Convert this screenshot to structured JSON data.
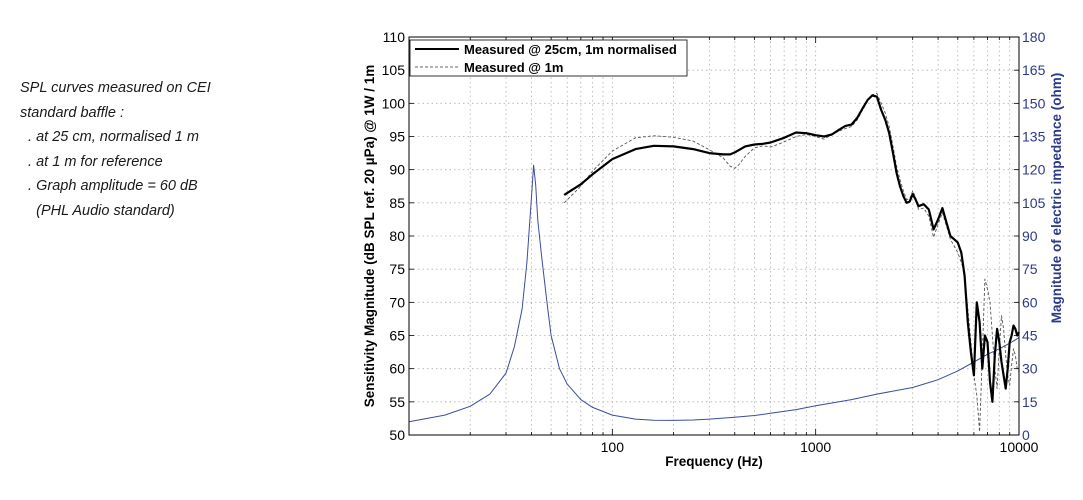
{
  "notes": [
    "SPL curves measured on CEI",
    "standard baffle :",
    "  . at 25 cm, normalised 1 m",
    "  . at 1 m for reference",
    "  . Graph amplitude = 60 dB",
    "    (PHL Audio standard)"
  ],
  "colors": {
    "spl": "#000000",
    "impedance": "#3c4c9c",
    "right_axis": "#2b3a8a",
    "grid": "#b0b0b0"
  },
  "chart_data": {
    "type": "line",
    "xlabel": "Frequency (Hz)",
    "ylabel": "Sensitivity Magnitude (dB SPL ref. 20 µPa) @ 1W / 1m",
    "y2label": "Magnitude of electric impedance (ohm)",
    "xscale": "log",
    "xlim": [
      10,
      10000
    ],
    "ylim": [
      50,
      110
    ],
    "y2lim": [
      0,
      180
    ],
    "xticks": [
      100,
      1000,
      10000
    ],
    "xtick_labels": [
      "100",
      "1000",
      "10000"
    ],
    "yticks": [
      50,
      55,
      60,
      65,
      70,
      75,
      80,
      85,
      90,
      95,
      100,
      105,
      110
    ],
    "y2ticks": [
      0,
      15,
      30,
      45,
      60,
      75,
      90,
      105,
      120,
      135,
      150,
      165,
      180
    ],
    "grid": true,
    "legend_position": "top-left",
    "series": [
      {
        "name": "Measured @ 25cm, 1m normalised",
        "axis": "left",
        "style": "solid",
        "x": [
          58,
          70,
          80,
          100,
          130,
          160,
          200,
          250,
          300,
          350,
          380,
          400,
          450,
          500,
          550,
          600,
          700,
          800,
          900,
          1000,
          1100,
          1200,
          1300,
          1400,
          1500,
          1600,
          1700,
          1800,
          1900,
          2000,
          2100,
          2200,
          2300,
          2400,
          2500,
          2600,
          2700,
          2800,
          2900,
          3000,
          3100,
          3200,
          3400,
          3600,
          3800,
          4000,
          4200,
          4400,
          4600,
          4800,
          5000,
          5200,
          5400,
          5600,
          5800,
          6000,
          6200,
          6400,
          6600,
          6800,
          7000,
          7200,
          7400,
          7600,
          7800,
          8000,
          8200,
          8400,
          8600,
          8800,
          9000,
          9200,
          9400,
          9600,
          9800,
          10000
        ],
        "y": [
          86.2,
          87.8,
          89.3,
          91.6,
          93.1,
          93.6,
          93.5,
          93.1,
          92.5,
          92.3,
          92.3,
          92.6,
          93.5,
          93.8,
          93.9,
          94.1,
          94.8,
          95.6,
          95.5,
          95.2,
          95.0,
          95.3,
          96.0,
          96.6,
          96.8,
          97.8,
          99.2,
          100.5,
          101.2,
          101.0,
          99.0,
          97.5,
          95.5,
          92.5,
          89.5,
          87.5,
          86.0,
          85.0,
          85.2,
          86.3,
          85.5,
          84.5,
          84.8,
          84.0,
          81.0,
          82.5,
          84.2,
          82.0,
          80.0,
          79.5,
          79.0,
          77.5,
          74.0,
          67.0,
          62.5,
          59.0,
          70.0,
          67.0,
          60.0,
          65.0,
          64.0,
          58.0,
          55.0,
          62.0,
          66.0,
          64.0,
          61.0,
          59.0,
          57.0,
          60.0,
          64.0,
          65.0,
          66.5,
          66.0,
          65.0,
          65.5
        ]
      },
      {
        "name": "Measured @ 1m",
        "axis": "left",
        "style": "dashed",
        "x": [
          58,
          70,
          80,
          100,
          130,
          160,
          200,
          250,
          300,
          350,
          380,
          400,
          420,
          450,
          500,
          550,
          600,
          650,
          700,
          800,
          900,
          1000,
          1100,
          1200,
          1300,
          1400,
          1500,
          1600,
          1700,
          1800,
          1900,
          2000,
          2100,
          2200,
          2300,
          2400,
          2500,
          2600,
          2700,
          2800,
          2900,
          3000,
          3100,
          3200,
          3400,
          3600,
          3800,
          4000,
          4200,
          4400,
          4600,
          4800,
          5000,
          5200,
          5400,
          5600,
          5800,
          6000,
          6200,
          6400,
          6600,
          6800,
          7000,
          7200,
          7400,
          7600,
          7800,
          8000,
          8200,
          8400,
          8600,
          8800,
          9000,
          9200,
          9400,
          9600,
          9800,
          10000
        ],
        "y": [
          85.0,
          87.5,
          89.8,
          92.8,
          94.8,
          95.1,
          94.9,
          94.3,
          93.0,
          91.8,
          90.5,
          90.2,
          90.8,
          92.0,
          93.3,
          93.6,
          93.4,
          93.8,
          94.2,
          95.0,
          95.3,
          95.0,
          94.6,
          95.3,
          95.8,
          96.2,
          96.5,
          97.5,
          99.0,
          100.3,
          101.3,
          101.5,
          100.0,
          98.5,
          96.5,
          93.5,
          90.5,
          88.5,
          86.8,
          85.5,
          85.6,
          86.8,
          85.8,
          84.0,
          84.2,
          83.0,
          79.8,
          81.8,
          83.5,
          81.5,
          79.5,
          78.5,
          77.5,
          76.0,
          74.5,
          69.0,
          64.0,
          59.0,
          56.0,
          50.5,
          62.0,
          73.5,
          72.0,
          70.0,
          65.0,
          60.0,
          57.0,
          63.0,
          68.0,
          66.0,
          62.0,
          59.0,
          57.5,
          60.5,
          63.0,
          62.0,
          60.0,
          59.5
        ]
      },
      {
        "axis": "right",
        "style": "solid",
        "x": [
          10,
          15,
          20,
          25,
          30,
          33,
          36,
          38,
          40,
          41,
          42,
          43,
          45,
          48,
          50,
          55,
          60,
          70,
          80,
          100,
          130,
          160,
          200,
          250,
          300,
          400,
          500,
          600,
          800,
          1000,
          1500,
          2000,
          3000,
          4000,
          5000,
          6000,
          7000,
          8000,
          9000,
          10000
        ],
        "y": [
          6.0,
          9.0,
          13.0,
          18.5,
          28.0,
          40.0,
          57.0,
          78.0,
          107.0,
          122.0,
          113.0,
          97.0,
          80.0,
          58.0,
          45.0,
          30.0,
          23.0,
          16.0,
          12.5,
          9.0,
          7.2,
          6.7,
          6.6,
          6.8,
          7.2,
          8.0,
          8.8,
          9.8,
          11.5,
          13.2,
          16.0,
          18.5,
          21.5,
          25.0,
          29.0,
          33.0,
          36.5,
          39.0,
          41.5,
          44.0
        ]
      }
    ]
  }
}
